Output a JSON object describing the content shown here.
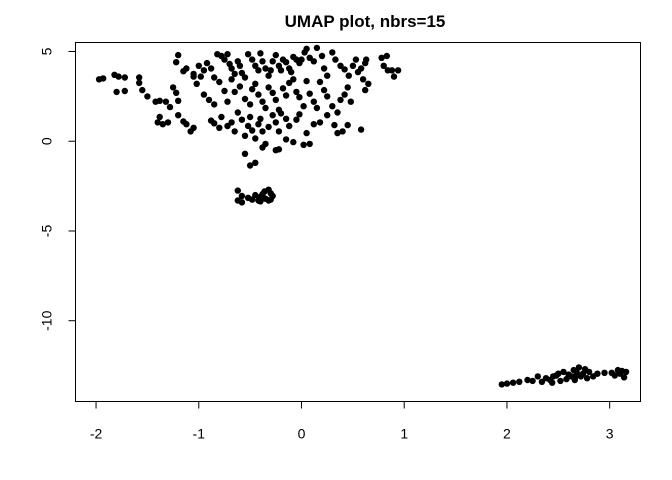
{
  "chart_data": {
    "type": "scatter",
    "title": "UMAP plot, nbrs=15",
    "xlabel": "",
    "ylabel": "",
    "xlim": [
      -2.2,
      3.3
    ],
    "ylim": [
      -14.5,
      5.5
    ],
    "x_ticks": [
      -2,
      -1,
      0,
      1,
      2,
      3
    ],
    "y_ticks": [
      -10,
      -5,
      0,
      5
    ],
    "x_tick_labels": [
      "-2",
      "-1",
      "0",
      "1",
      "2",
      "3"
    ],
    "y_tick_labels": [
      "-10",
      "-5",
      "0",
      "5"
    ],
    "grid": false,
    "legend": "none",
    "point_color": "#000000",
    "points": [
      [
        -1.97,
        3.45
      ],
      [
        -1.93,
        3.5
      ],
      [
        -1.82,
        3.7
      ],
      [
        -1.78,
        3.6
      ],
      [
        -1.72,
        3.55
      ],
      [
        -1.8,
        2.75
      ],
      [
        -1.72,
        2.8
      ],
      [
        -1.58,
        3.55
      ],
      [
        -1.58,
        3.25
      ],
      [
        -1.55,
        2.85
      ],
      [
        -1.5,
        2.5
      ],
      [
        -1.42,
        2.2
      ],
      [
        -1.38,
        2.25
      ],
      [
        -1.38,
        1.35
      ],
      [
        -1.4,
        1.05
      ],
      [
        -1.35,
        0.95
      ],
      [
        -1.32,
        2.2
      ],
      [
        -1.28,
        1.9
      ],
      [
        -1.3,
        1.05
      ],
      [
        -1.25,
        3.0
      ],
      [
        -1.22,
        2.7
      ],
      [
        -1.2,
        2.25
      ],
      [
        -1.2,
        1.45
      ],
      [
        -1.15,
        1.1
      ],
      [
        -1.12,
        0.95
      ],
      [
        -1.08,
        0.55
      ],
      [
        -1.05,
        0.75
      ],
      [
        -1.2,
        4.8
      ],
      [
        -1.22,
        4.4
      ],
      [
        -1.15,
        3.9
      ],
      [
        -1.12,
        4.05
      ],
      [
        -1.05,
        3.75
      ],
      [
        -1.0,
        4.2
      ],
      [
        -0.98,
        3.6
      ],
      [
        -0.95,
        3.95
      ],
      [
        -0.92,
        4.35
      ],
      [
        -0.88,
        4.05
      ],
      [
        -0.85,
        3.55
      ],
      [
        -0.82,
        4.85
      ],
      [
        -0.78,
        4.75
      ],
      [
        -0.75,
        4.55
      ],
      [
        -0.72,
        4.85
      ],
      [
        -0.7,
        4.3
      ],
      [
        -0.68,
        4.05
      ],
      [
        -0.65,
        3.75
      ],
      [
        -0.62,
        4.45
      ],
      [
        -0.6,
        4.2
      ],
      [
        -0.58,
        3.8
      ],
      [
        -0.55,
        3.55
      ],
      [
        -0.52,
        4.85
      ],
      [
        -0.48,
        4.55
      ],
      [
        -0.45,
        4.2
      ],
      [
        -0.42,
        3.95
      ],
      [
        -0.4,
        4.9
      ],
      [
        -0.38,
        4.45
      ],
      [
        -0.35,
        4.05
      ],
      [
        -0.32,
        3.65
      ],
      [
        -0.3,
        3.95
      ],
      [
        -0.28,
        4.45
      ],
      [
        -0.25,
        4.8
      ],
      [
        -0.22,
        4.2
      ],
      [
        -0.2,
        3.95
      ],
      [
        -0.18,
        4.55
      ],
      [
        -0.15,
        4.4
      ],
      [
        -0.12,
        4.05
      ],
      [
        -0.1,
        3.85
      ],
      [
        -0.08,
        4.7
      ],
      [
        -0.05,
        4.55
      ],
      [
        -0.02,
        4.35
      ],
      [
        0.0,
        4.55
      ],
      [
        0.03,
        4.95
      ],
      [
        0.05,
        5.15
      ],
      [
        0.08,
        4.65
      ],
      [
        0.12,
        4.45
      ],
      [
        0.15,
        5.2
      ],
      [
        0.2,
        4.75
      ],
      [
        0.22,
        4.05
      ],
      [
        0.25,
        3.65
      ],
      [
        0.3,
        4.95
      ],
      [
        0.33,
        4.55
      ],
      [
        0.38,
        4.2
      ],
      [
        0.42,
        4.0
      ],
      [
        0.46,
        3.65
      ],
      [
        0.5,
        4.2
      ],
      [
        0.53,
        4.55
      ],
      [
        0.55,
        3.85
      ],
      [
        0.58,
        4.05
      ],
      [
        0.62,
        4.35
      ],
      [
        0.63,
        4.55
      ],
      [
        0.6,
        3.45
      ],
      [
        0.65,
        3.2
      ],
      [
        0.62,
        2.85
      ],
      [
        0.78,
        4.65
      ],
      [
        0.8,
        4.2
      ],
      [
        0.83,
        4.75
      ],
      [
        0.84,
        3.95
      ],
      [
        0.88,
        3.95
      ],
      [
        0.9,
        3.6
      ],
      [
        0.94,
        3.95
      ],
      [
        -1.05,
        3.6
      ],
      [
        -1.02,
        3.2
      ],
      [
        -0.95,
        2.6
      ],
      [
        -0.9,
        2.3
      ],
      [
        -0.85,
        2.05
      ],
      [
        -0.8,
        3.3
      ],
      [
        -0.75,
        2.8
      ],
      [
        -0.72,
        2.2
      ],
      [
        -0.68,
        3.45
      ],
      [
        -0.65,
        2.75
      ],
      [
        -0.6,
        3.05
      ],
      [
        -0.55,
        2.35
      ],
      [
        -0.5,
        2.05
      ],
      [
        -0.48,
        2.9
      ],
      [
        -0.45,
        3.2
      ],
      [
        -0.42,
        2.6
      ],
      [
        -0.38,
        2.2
      ],
      [
        -0.35,
        1.85
      ],
      [
        -0.32,
        3.0
      ],
      [
        -0.28,
        2.7
      ],
      [
        -0.25,
        2.3
      ],
      [
        -0.22,
        1.75
      ],
      [
        -0.18,
        2.95
      ],
      [
        -0.15,
        2.55
      ],
      [
        -0.12,
        3.25
      ],
      [
        -0.08,
        3.45
      ],
      [
        -0.05,
        2.75
      ],
      [
        -0.02,
        2.45
      ],
      [
        0.02,
        1.95
      ],
      [
        0.05,
        3.35
      ],
      [
        0.08,
        2.65
      ],
      [
        0.12,
        2.2
      ],
      [
        0.15,
        1.85
      ],
      [
        0.18,
        3.3
      ],
      [
        0.22,
        2.85
      ],
      [
        0.25,
        2.5
      ],
      [
        0.3,
        1.95
      ],
      [
        0.35,
        1.6
      ],
      [
        0.38,
        2.3
      ],
      [
        0.42,
        2.6
      ],
      [
        0.45,
        3.0
      ],
      [
        0.48,
        2.2
      ],
      [
        -0.88,
        1.15
      ],
      [
        -0.85,
        1.0
      ],
      [
        -0.8,
        0.75
      ],
      [
        -0.78,
        1.35
      ],
      [
        -0.72,
        0.85
      ],
      [
        -0.68,
        1.05
      ],
      [
        -0.65,
        0.55
      ],
      [
        -0.62,
        1.6
      ],
      [
        -0.58,
        1.2
      ],
      [
        -0.55,
        0.3
      ],
      [
        -0.52,
        0.85
      ],
      [
        -0.5,
        1.35
      ],
      [
        -0.48,
        0.6
      ],
      [
        -0.45,
        0.15
      ],
      [
        -0.42,
        0.95
      ],
      [
        -0.4,
        1.25
      ],
      [
        -0.38,
        0.55
      ],
      [
        -0.35,
        -0.15
      ],
      [
        -0.32,
        0.8
      ],
      [
        -0.28,
        1.45
      ],
      [
        -0.25,
        1.05
      ],
      [
        -0.22,
        0.55
      ],
      [
        -0.2,
        1.55
      ],
      [
        -0.15,
        1.25
      ],
      [
        -0.12,
        0.85
      ],
      [
        -0.08,
        -0.05
      ],
      [
        -0.05,
        1.2
      ],
      [
        -0.02,
        1.5
      ],
      [
        0.05,
        0.45
      ],
      [
        0.08,
        -0.15
      ],
      [
        0.12,
        0.95
      ],
      [
        0.18,
        1.05
      ],
      [
        0.25,
        1.45
      ],
      [
        0.32,
        0.9
      ],
      [
        0.35,
        0.45
      ],
      [
        0.4,
        0.55
      ],
      [
        0.45,
        0.9
      ],
      [
        0.58,
        0.65
      ],
      [
        -0.55,
        -0.7
      ],
      [
        -0.5,
        -1.35
      ],
      [
        -0.45,
        -1.2
      ],
      [
        -0.38,
        -0.35
      ],
      [
        -0.25,
        -0.5
      ],
      [
        -0.22,
        -0.45
      ],
      [
        -0.15,
        0.1
      ],
      [
        0.02,
        -0.2
      ],
      [
        -0.62,
        -2.75
      ],
      [
        -0.58,
        -3.05
      ],
      [
        -0.62,
        -3.3
      ],
      [
        -0.58,
        -3.4
      ],
      [
        -0.52,
        -3.15
      ],
      [
        -0.48,
        -3.25
      ],
      [
        -0.45,
        -3.0
      ],
      [
        -0.42,
        -3.3
      ],
      [
        -0.4,
        -3.1
      ],
      [
        -0.38,
        -2.95
      ],
      [
        -0.35,
        -3.2
      ],
      [
        -0.32,
        -2.7
      ],
      [
        -0.32,
        -3.3
      ],
      [
        -0.3,
        -2.9
      ],
      [
        -0.28,
        -3.05
      ],
      [
        -0.3,
        -3.25
      ],
      [
        -0.4,
        -3.35
      ],
      [
        -0.36,
        -2.8
      ],
      [
        1.95,
        -13.55
      ],
      [
        2.0,
        -13.5
      ],
      [
        2.06,
        -13.45
      ],
      [
        2.12,
        -13.4
      ],
      [
        2.2,
        -13.3
      ],
      [
        2.25,
        -13.35
      ],
      [
        2.3,
        -13.1
      ],
      [
        2.34,
        -13.4
      ],
      [
        2.38,
        -13.2
      ],
      [
        2.42,
        -13.3
      ],
      [
        2.44,
        -13.45
      ],
      [
        2.48,
        -13.05
      ],
      [
        2.52,
        -13.35
      ],
      [
        2.55,
        -12.85
      ],
      [
        2.58,
        -13.25
      ],
      [
        2.6,
        -13.0
      ],
      [
        2.63,
        -13.1
      ],
      [
        2.65,
        -12.75
      ],
      [
        2.66,
        -13.3
      ],
      [
        2.68,
        -12.9
      ],
      [
        2.7,
        -12.6
      ],
      [
        2.72,
        -13.1
      ],
      [
        2.74,
        -12.95
      ],
      [
        2.76,
        -12.7
      ],
      [
        2.78,
        -13.2
      ],
      [
        2.8,
        -12.85
      ],
      [
        2.84,
        -13.1
      ],
      [
        2.88,
        -12.95
      ],
      [
        2.95,
        -12.9
      ],
      [
        3.05,
        -13.05
      ],
      [
        3.08,
        -12.75
      ],
      [
        3.1,
        -12.95
      ],
      [
        3.12,
        -12.8
      ],
      [
        3.14,
        -13.15
      ],
      [
        3.16,
        -12.85
      ],
      [
        3.02,
        -12.9
      ],
      [
        2.45,
        -13.1
      ],
      [
        2.68,
        -13.05
      ],
      [
        2.5,
        -12.95
      ]
    ]
  }
}
